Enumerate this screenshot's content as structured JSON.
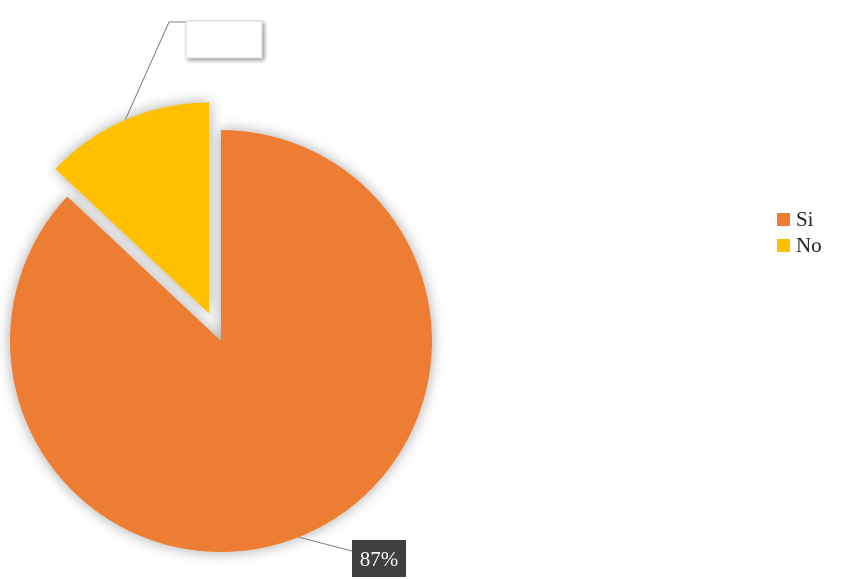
{
  "chart_data": {
    "type": "pie",
    "slices": [
      {
        "label": "Si",
        "value": 87,
        "display": "87%",
        "color": "#ED7D31"
      },
      {
        "label": "No",
        "value": 13,
        "display": "",
        "color": "#FFC000"
      }
    ],
    "legend_position": "right",
    "data_labels": "callout"
  }
}
